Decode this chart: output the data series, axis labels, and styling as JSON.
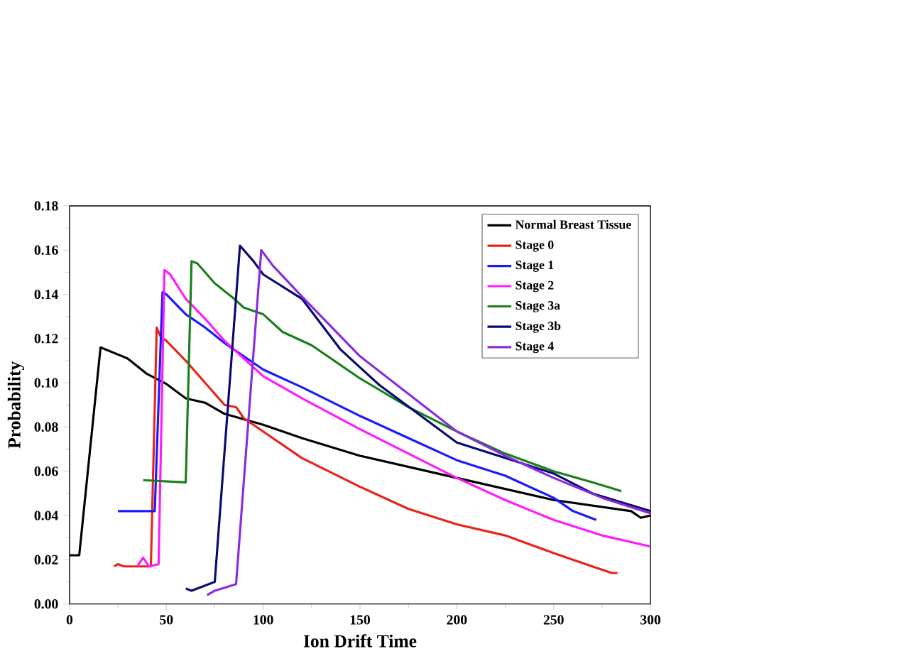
{
  "chart_data": {
    "type": "line",
    "xlabel": "Ion Drift Time",
    "ylabel": "Probability",
    "xlim": [
      0,
      300
    ],
    "xticks": [
      0,
      50,
      100,
      150,
      200,
      250,
      300
    ],
    "ylim": [
      0,
      0.18
    ],
    "yticks": [
      {
        "value": 0,
        "label": "0.00"
      },
      {
        "value": 0.02,
        "label": "0.02"
      },
      {
        "value": 0.04,
        "label": "0.04"
      },
      {
        "value": 0.06,
        "label": "0.06"
      },
      {
        "value": 0.08,
        "label": "0.08"
      },
      {
        "value": 0.1,
        "label": "0.10"
      },
      {
        "value": 0.12,
        "label": "0.12"
      },
      {
        "value": 0.14,
        "label": "0.14"
      },
      {
        "value": 0.16,
        "label": "0.16"
      },
      {
        "value": 0.18,
        "label": "0.18"
      }
    ],
    "legend": "top right",
    "grid": false,
    "marker": "none",
    "line_style": "solid",
    "series": [
      {
        "name": "Normal Breast Tissue",
        "color": "#000000",
        "x": [
          0,
          5,
          16,
          30,
          40,
          50,
          60,
          70,
          80,
          100,
          120,
          150,
          200,
          250,
          290,
          295,
          300
        ],
        "values": [
          0.022,
          0.022,
          0.116,
          0.111,
          0.104,
          0.0995,
          0.093,
          0.091,
          0.086,
          0.081,
          0.075,
          0.067,
          0.057,
          0.047,
          0.042,
          0.039,
          0.04
        ]
      },
      {
        "name": "Stage 0",
        "color": "#e8231a",
        "x": [
          23,
          25,
          28,
          42,
          45,
          47,
          50,
          60,
          70,
          80,
          86,
          90,
          100,
          120,
          150,
          175,
          200,
          225,
          250,
          270,
          280,
          283
        ],
        "values": [
          0.017,
          0.018,
          0.017,
          0.017,
          0.125,
          0.121,
          0.119,
          0.11,
          0.1,
          0.09,
          0.089,
          0.084,
          0.078,
          0.066,
          0.053,
          0.043,
          0.036,
          0.031,
          0.023,
          0.017,
          0.014,
          0.014
        ]
      },
      {
        "name": "Stage 1",
        "color": "#1a1aff",
        "x": [
          25,
          44,
          48,
          50,
          60,
          70,
          80,
          100,
          120,
          150,
          175,
          200,
          225,
          250,
          260,
          272
        ],
        "values": [
          0.042,
          0.042,
          0.141,
          0.14,
          0.131,
          0.125,
          0.118,
          0.106,
          0.098,
          0.085,
          0.075,
          0.065,
          0.058,
          0.048,
          0.042,
          0.038
        ]
      },
      {
        "name": "Stage 2",
        "color": "#ff1aff",
        "x": [
          35,
          38,
          41,
          46,
          49,
          52,
          60,
          70,
          80,
          100,
          120,
          150,
          175,
          200,
          225,
          250,
          275,
          300
        ],
        "values": [
          0.017,
          0.021,
          0.017,
          0.018,
          0.151,
          0.149,
          0.138,
          0.129,
          0.119,
          0.103,
          0.093,
          0.079,
          0.068,
          0.057,
          0.047,
          0.038,
          0.031,
          0.026
        ]
      },
      {
        "name": "Stage 3a",
        "color": "#1a7f1a",
        "x": [
          38,
          60,
          63,
          66,
          75,
          85,
          90,
          100,
          110,
          125,
          150,
          175,
          200,
          225,
          250,
          270,
          285
        ],
        "values": [
          0.056,
          0.055,
          0.155,
          0.154,
          0.145,
          0.138,
          0.134,
          0.131,
          0.123,
          0.117,
          0.102,
          0.089,
          0.078,
          0.068,
          0.06,
          0.055,
          0.051
        ]
      },
      {
        "name": "Stage 3b",
        "color": "#0a0a6e",
        "x": [
          60,
          63,
          75,
          88,
          95,
          100,
          120,
          140,
          160,
          200,
          225,
          250,
          270,
          300
        ],
        "values": [
          0.007,
          0.006,
          0.01,
          0.162,
          0.155,
          0.149,
          0.138,
          0.115,
          0.099,
          0.073,
          0.066,
          0.059,
          0.05,
          0.042
        ]
      },
      {
        "name": "Stage 4",
        "color": "#8a2be2",
        "x": [
          71,
          75,
          86,
          99,
          105,
          120,
          150,
          175,
          200,
          225,
          250,
          275,
          300
        ],
        "values": [
          0.004,
          0.006,
          0.009,
          0.16,
          0.153,
          0.139,
          0.112,
          0.095,
          0.078,
          0.067,
          0.057,
          0.048,
          0.041
        ]
      }
    ]
  }
}
